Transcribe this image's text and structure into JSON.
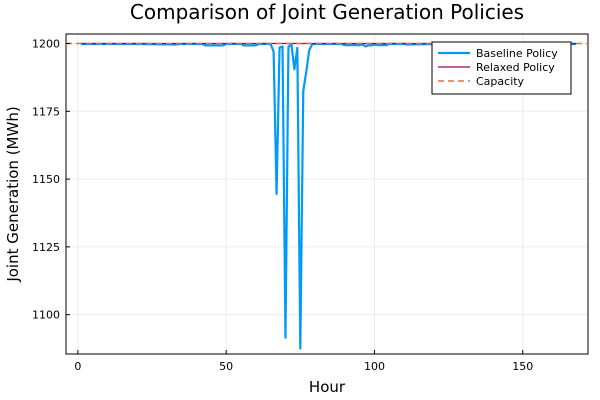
{
  "chart_data": {
    "type": "line",
    "title": "Comparison of Joint Generation Policies",
    "xlabel": "Hour",
    "ylabel": "Joint Generation (MWh)",
    "xlim": [
      -4,
      172
    ],
    "ylim": [
      1085.5,
      1203.5
    ],
    "xticks": [
      0,
      50,
      100,
      150
    ],
    "yticks": [
      1100,
      1125,
      1150,
      1175,
      1200
    ],
    "grid": true,
    "legend_position": "top-right",
    "series": [
      {
        "name": "Baseline Policy",
        "color": "#009af9",
        "style": "solid",
        "x": [
          1,
          10,
          20,
          33,
          34,
          42,
          43,
          49,
          50,
          52,
          55,
          56,
          60,
          61,
          64,
          65,
          66,
          67,
          68,
          69,
          70,
          71,
          72,
          73,
          74,
          75,
          76,
          77,
          78,
          79,
          80,
          85,
          89,
          90,
          95,
          96,
          97,
          98,
          99,
          100,
          101,
          104,
          105,
          110,
          111,
          120,
          168
        ],
        "y": [
          1199.8,
          1199.8,
          1199.8,
          1199.6,
          1199.8,
          1199.8,
          1199.3,
          1199.3,
          1199.8,
          1199.8,
          1199.8,
          1199.3,
          1199.3,
          1199.8,
          1199.8,
          1199.8,
          1197,
          1144.5,
          1198.5,
          1198.9,
          1091.5,
          1198.8,
          1199.7,
          1190.5,
          1198.4,
          1087.5,
          1182.5,
          1189.5,
          1197.5,
          1199.7,
          1199.8,
          1199.8,
          1199.8,
          1199.4,
          1199.4,
          1199.6,
          1198.9,
          1199.4,
          1199.3,
          1199.6,
          1199.4,
          1199.4,
          1199.8,
          1199.8,
          1199.6,
          1199.8,
          1199.8
        ]
      },
      {
        "name": "Relaxed Policy",
        "color": "#990066",
        "style": "solid",
        "x": [
          1,
          168
        ],
        "y": [
          1200,
          1200
        ]
      },
      {
        "name": "Capacity",
        "color": "#e26f46",
        "style": "dashed",
        "x": [
          -4,
          172
        ],
        "y": [
          1200,
          1200
        ]
      }
    ]
  }
}
